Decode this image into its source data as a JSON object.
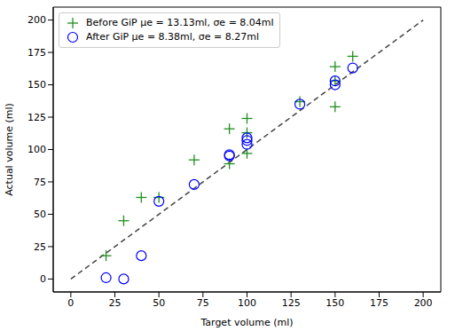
{
  "chart_data": {
    "type": "scatter",
    "x_label": "Target volume (ml)",
    "y_label": "Actual volume (ml)",
    "xlim": [
      -10,
      210
    ],
    "ylim": [
      -10,
      210
    ],
    "xticks": [
      0,
      25,
      50,
      75,
      100,
      125,
      150,
      175,
      200
    ],
    "yticks": [
      0,
      25,
      50,
      75,
      100,
      125,
      150,
      175,
      200
    ],
    "grid": false,
    "legend": "upper left",
    "reference_line": {
      "x": [
        0,
        200
      ],
      "y": [
        0,
        200
      ],
      "color": "#444444",
      "line_style": "dashed"
    },
    "series": [
      {
        "name": "Before GiP μe = 13.13ml, σe = 8.04ml",
        "color": "#1f8f1f",
        "marker": "plus",
        "x": [
          20,
          30,
          40,
          50,
          70,
          90,
          90,
          100,
          100,
          100,
          130,
          150,
          150,
          150,
          160
        ],
        "values": [
          18,
          45,
          63,
          63,
          92,
          116,
          89,
          124,
          113,
          97,
          137,
          164,
          153,
          133,
          172
        ]
      },
      {
        "name": "After GiP μe = 8.38ml, σe = 8.27ml",
        "color": "#0000ff",
        "marker": "circle",
        "x": [
          20,
          30,
          40,
          50,
          70,
          90,
          90,
          100,
          100,
          100,
          130,
          150,
          150,
          160
        ],
        "values": [
          1,
          0,
          18,
          60,
          73,
          95,
          96,
          104,
          107,
          109,
          135,
          150,
          153,
          163
        ]
      }
    ]
  }
}
